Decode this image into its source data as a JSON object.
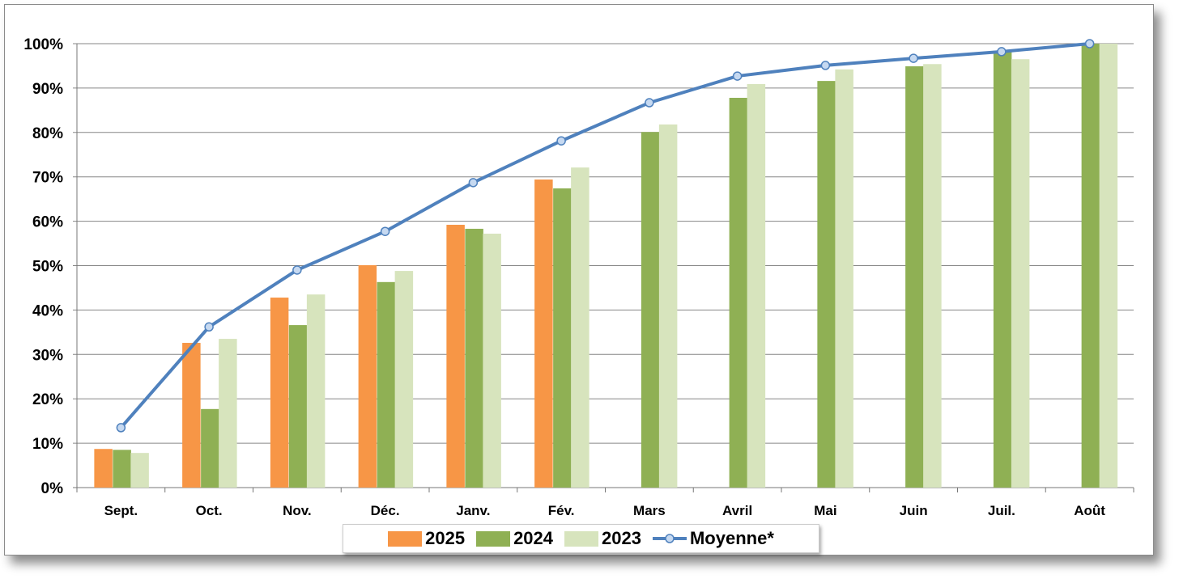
{
  "chart_data": {
    "type": "bar",
    "categories": [
      "Sept.",
      "Oct.",
      "Nov.",
      "Déc.",
      "Janv.",
      "Fév.",
      "Mars",
      "Avril",
      "Mai",
      "Juin",
      "Juil.",
      "Août"
    ],
    "series": [
      {
        "name": "2025",
        "type": "bar",
        "color": "#f79646",
        "values": [
          8.7,
          32.6,
          42.8,
          50.1,
          59.2,
          69.4,
          null,
          null,
          null,
          null,
          null,
          null
        ]
      },
      {
        "name": "2024",
        "type": "bar",
        "color": "#8fb054",
        "values": [
          8.5,
          17.7,
          36.6,
          46.3,
          58.3,
          67.4,
          80.1,
          87.8,
          91.6,
          94.9,
          98.4,
          100
        ]
      },
      {
        "name": "2023",
        "type": "bar",
        "color": "#d7e4bd",
        "values": [
          7.8,
          33.5,
          43.5,
          48.8,
          57.2,
          72.1,
          81.8,
          90.9,
          94.2,
          95.4,
          96.5,
          100
        ]
      },
      {
        "name": "Moyenne*",
        "type": "line",
        "color": "#4f81bd",
        "values": [
          13.5,
          36.2,
          49.0,
          57.7,
          68.7,
          78.1,
          86.7,
          92.7,
          95.1,
          96.7,
          98.2,
          100
        ]
      }
    ],
    "ylim": [
      0,
      100
    ],
    "yticks": [
      "0%",
      "10%",
      "20%",
      "30%",
      "40%",
      "50%",
      "60%",
      "70%",
      "80%",
      "90%",
      "100%"
    ],
    "grid": true,
    "legend_position": "bottom"
  }
}
